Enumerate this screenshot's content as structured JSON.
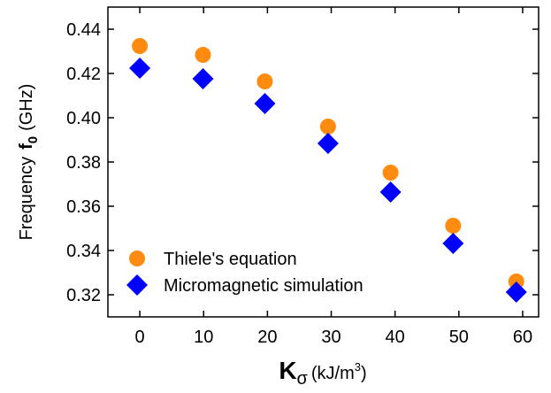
{
  "chart_data": {
    "type": "scatter",
    "xlabel": {
      "symbol": "K",
      "sub": "σ",
      "unit": "(kJ/m",
      "sup": "3",
      "close": ")"
    },
    "ylabel": {
      "text": "Frequency",
      "symbol": "f",
      "sub": "0",
      "unit": "(GHz)"
    },
    "xlim": [
      -5,
      62.5
    ],
    "ylim": [
      0.31,
      0.45
    ],
    "xticks": [
      0,
      10,
      20,
      30,
      40,
      50,
      60
    ],
    "yticks": [
      0.32,
      0.34,
      0.36,
      0.38,
      {
        "value": 0.4,
        "label": "0.40"
      },
      0.42,
      0.44
    ],
    "legend": "lower left",
    "series": [
      {
        "name": "Thiele's equation",
        "color": "#ff8c0f",
        "marker": "circle",
        "x": [
          0,
          9.9,
          19.6,
          29.5,
          39.3,
          49.1,
          59
        ],
        "values": [
          0.4324,
          0.4284,
          0.4164,
          0.396,
          0.3752,
          0.3512,
          0.326
        ]
      },
      {
        "name": "Micromagnetic simulation",
        "color": "#0000ff",
        "marker": "diamond",
        "x": [
          0,
          9.9,
          19.6,
          29.5,
          39.3,
          49.1,
          59
        ],
        "values": [
          0.4224,
          0.4176,
          0.4064,
          0.3884,
          0.3664,
          0.3432,
          0.3212
        ]
      }
    ]
  }
}
